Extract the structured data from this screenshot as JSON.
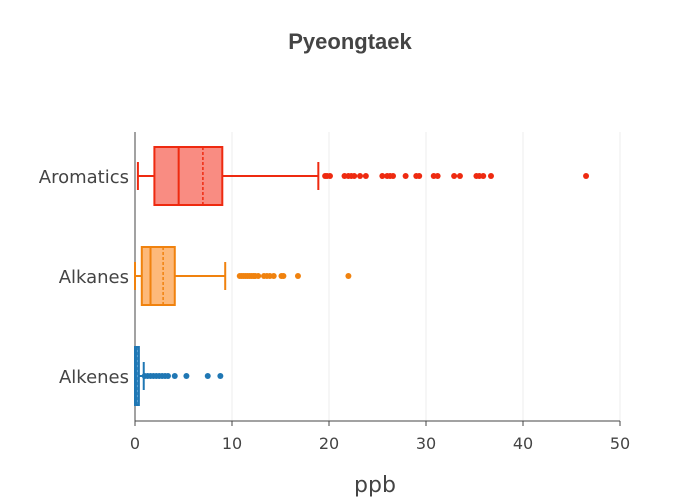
{
  "chart_data": {
    "type": "box",
    "title": "Pyeongtaek",
    "xlabel": "ppb",
    "ylabel": "",
    "xlim": [
      0,
      50
    ],
    "xticks": [
      0,
      10,
      20,
      30,
      40,
      50
    ],
    "grid": true,
    "orientation": "horizontal",
    "series": [
      {
        "name": "Aromatics",
        "color": "#ee2a10",
        "fill": "#f98c82",
        "lowerfence": 0.3,
        "q1": 2.0,
        "median": 4.5,
        "mean": 7.0,
        "q3": 9.0,
        "upperfence": 18.9,
        "outliers": [
          19.6,
          19.8,
          20.1,
          21.6,
          22.0,
          22.3,
          22.6,
          23.2,
          23.8,
          25.5,
          26.0,
          26.3,
          26.6,
          27.9,
          29.0,
          29.3,
          30.8,
          31.2,
          32.9,
          33.5,
          35.2,
          35.5,
          35.9,
          36.7,
          46.5
        ]
      },
      {
        "name": "Alkanes",
        "color": "#f0820e",
        "fill": "#fdb97a",
        "lowerfence": 0.0,
        "q1": 0.7,
        "median": 1.6,
        "mean": 2.9,
        "q3": 4.1,
        "upperfence": 9.3,
        "outliers": [
          10.8,
          11.0,
          11.2,
          11.4,
          11.6,
          11.8,
          12.0,
          12.2,
          12.4,
          12.7,
          13.3,
          13.6,
          13.9,
          14.3,
          15.1,
          15.3,
          16.8,
          22.0
        ]
      },
      {
        "name": "Alkenes",
        "color": "#1f77b4",
        "fill": "#63a6d8",
        "lowerfence": 0.0,
        "q1": 0.0,
        "median": 0.1,
        "mean": 0.2,
        "q3": 0.4,
        "upperfence": 0.9,
        "outliers": [
          1.0,
          1.3,
          1.6,
          1.9,
          2.2,
          2.5,
          2.8,
          3.1,
          3.4,
          4.1,
          5.3,
          7.5,
          8.8
        ]
      }
    ]
  }
}
